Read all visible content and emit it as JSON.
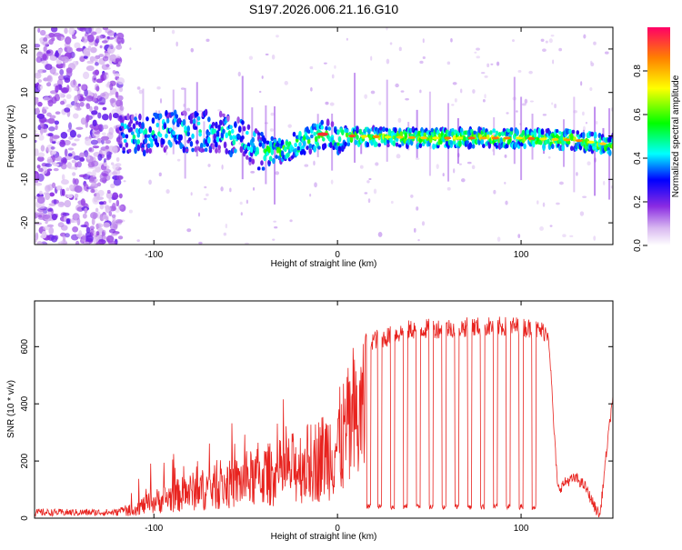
{
  "figure_title": "S197.2026.006.21.16.G10",
  "colors": {
    "line": "#e8231f",
    "axis": "#000000",
    "colormap": [
      "#ffffff",
      "#8a2be2",
      "#0000ff",
      "#00ffff",
      "#00ff00",
      "#ffff00",
      "#ff0000"
    ]
  },
  "chart_data": [
    {
      "type": "heatmap",
      "title": "",
      "xlabel": "Height of straight line (km)",
      "ylabel": "Frequency (Hz)",
      "xlim": [
        -165,
        150
      ],
      "ylim": [
        -25,
        25
      ],
      "x_ticks": [
        -100,
        0,
        100
      ],
      "y_ticks": [
        -20,
        -10,
        0,
        10,
        20
      ],
      "colorbar": {
        "label": "Normalized spectral amplitude",
        "range": [
          0.0,
          1.0
        ],
        "ticks": [
          0.0,
          0.2,
          0.4,
          0.6,
          0.8
        ]
      },
      "ridge": {
        "description_points": [
          {
            "x": -115,
            "y": 0
          },
          {
            "x": -90,
            "y": 1
          },
          {
            "x": -65,
            "y": 1
          },
          {
            "x": -50,
            "y": -1
          },
          {
            "x": -40,
            "y": -4
          },
          {
            "x": -30,
            "y": -3
          },
          {
            "x": -20,
            "y": -1.5
          },
          {
            "x": -10,
            "y": 0
          },
          {
            "x": -5,
            "y": 0.5
          },
          {
            "x": 0,
            "y": -1
          },
          {
            "x": 5,
            "y": 0
          },
          {
            "x": 50,
            "y": -0.5
          },
          {
            "x": 100,
            "y": -0.5
          },
          {
            "x": 130,
            "y": -1
          },
          {
            "x": 148,
            "y": -2
          }
        ]
      }
    },
    {
      "type": "line",
      "title": "",
      "xlabel": "Height of straight line (km)",
      "ylabel": "SNR (10 * v/v)",
      "xlim": [
        -165,
        150
      ],
      "ylim": [
        0,
        760
      ],
      "x_ticks": [
        -100,
        0,
        100
      ],
      "y_ticks": [
        0,
        200,
        400,
        600
      ],
      "series": [
        {
          "name": "SNR",
          "envelope": [
            {
              "x": -165,
              "y": 20
            },
            {
              "x": -120,
              "y": 20
            },
            {
              "x": -110,
              "y": 60
            },
            {
              "x": -100,
              "y": 100
            },
            {
              "x": -90,
              "y": 130
            },
            {
              "x": -80,
              "y": 160
            },
            {
              "x": -70,
              "y": 180
            },
            {
              "x": -60,
              "y": 200
            },
            {
              "x": -50,
              "y": 230
            },
            {
              "x": -40,
              "y": 260
            },
            {
              "x": -30,
              "y": 280
            },
            {
              "x": -20,
              "y": 320
            },
            {
              "x": -10,
              "y": 360
            },
            {
              "x": -5,
              "y": 400
            },
            {
              "x": 0,
              "y": 440
            },
            {
              "x": 5,
              "y": 520
            },
            {
              "x": 10,
              "y": 580
            },
            {
              "x": 15,
              "y": 620
            },
            {
              "x": 25,
              "y": 630
            },
            {
              "x": 40,
              "y": 660
            },
            {
              "x": 60,
              "y": 665
            },
            {
              "x": 80,
              "y": 670
            },
            {
              "x": 100,
              "y": 670
            },
            {
              "x": 115,
              "y": 650
            },
            {
              "x": 118,
              "y": 300
            },
            {
              "x": 120,
              "y": 100
            },
            {
              "x": 125,
              "y": 130
            },
            {
              "x": 130,
              "y": 140
            },
            {
              "x": 135,
              "y": 110
            },
            {
              "x": 140,
              "y": 40
            },
            {
              "x": 143,
              "y": 10
            },
            {
              "x": 146,
              "y": 200
            },
            {
              "x": 150,
              "y": 430
            }
          ],
          "dropouts_x": [
            17,
            23,
            30,
            37,
            44,
            51,
            58,
            65,
            72,
            79,
            86,
            93,
            100,
            107
          ],
          "dropout_value": 40
        }
      ]
    }
  ]
}
